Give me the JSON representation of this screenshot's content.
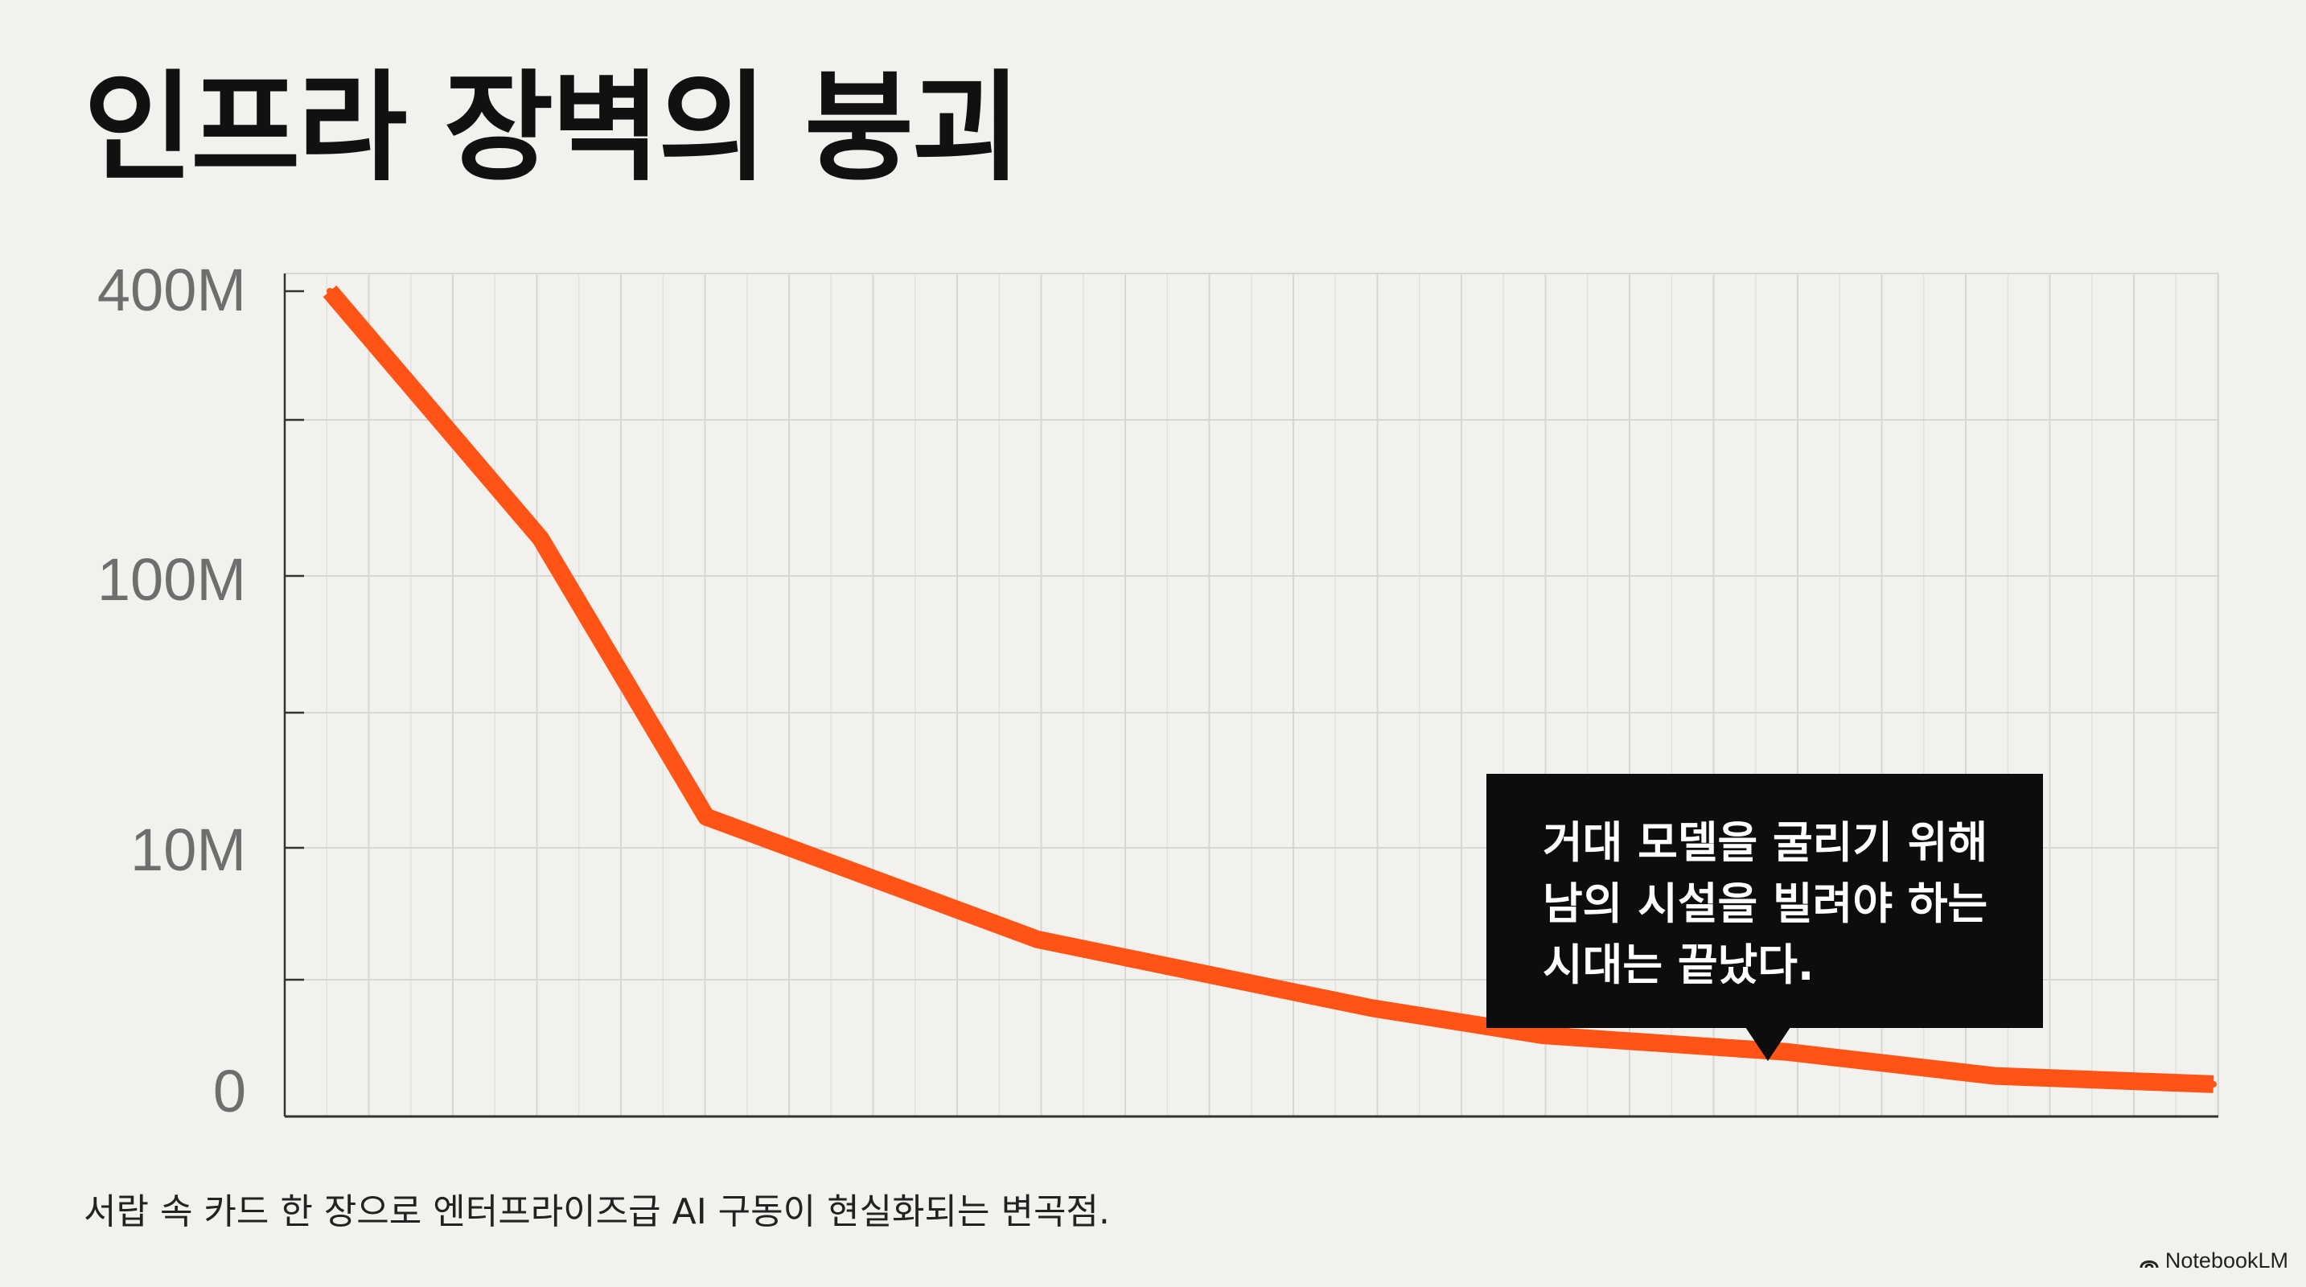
{
  "page": {
    "title": "인프라 장벽의 붕괴",
    "caption": "서랍 속 카드 한 장으로 엔터프라이즈급 AI 구동이 현실화되는 변곡점.",
    "watermark": "NotebookLM"
  },
  "callout": {
    "lines": [
      "거대 모델을 굴리기 위해",
      "남의 시설을 빌려야 하는",
      "시대는 끝났다."
    ]
  },
  "chart_data": {
    "type": "line",
    "title": "인프라 장벽의 붕괴",
    "xlabel": "",
    "ylabel": "",
    "y_scale": "log",
    "y_ticks": [
      "400M",
      "100M",
      "10M",
      "0"
    ],
    "x": [
      0,
      1,
      2,
      3,
      4,
      5,
      6,
      7,
      8
    ],
    "series": [
      {
        "values": [
          400000000,
          120000000,
          13000000,
          1800000,
          500000,
          300000,
          220000,
          140000,
          120000
        ]
      }
    ],
    "grid": true,
    "legend": "none",
    "colors": {
      "line": "#ff5416",
      "grid": "#d6d6d2",
      "axis": "#333333",
      "callout_bg": "#0d0d0d",
      "background": "#f2f1ed"
    }
  }
}
